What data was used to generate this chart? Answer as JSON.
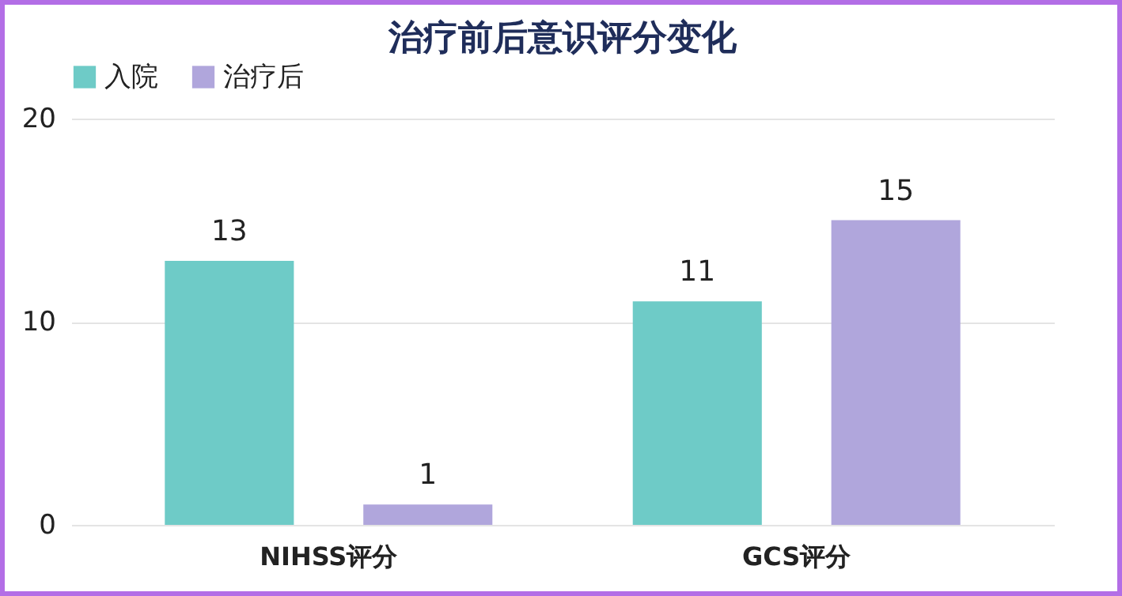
{
  "chart_data": {
    "type": "bar",
    "title": "治疗前后意识评分变化",
    "categories": [
      "NIHSS评分",
      "GCS评分"
    ],
    "series": [
      {
        "name": "入院",
        "color": "#6ecbc7",
        "values": [
          13,
          11
        ]
      },
      {
        "name": "治疗后",
        "color": "#b0a6dc",
        "values": [
          1,
          15
        ]
      }
    ],
    "ylim": [
      0,
      20
    ],
    "yticks": [
      0,
      10,
      20
    ],
    "grid": "y",
    "legend": "top",
    "data_labels": true
  }
}
